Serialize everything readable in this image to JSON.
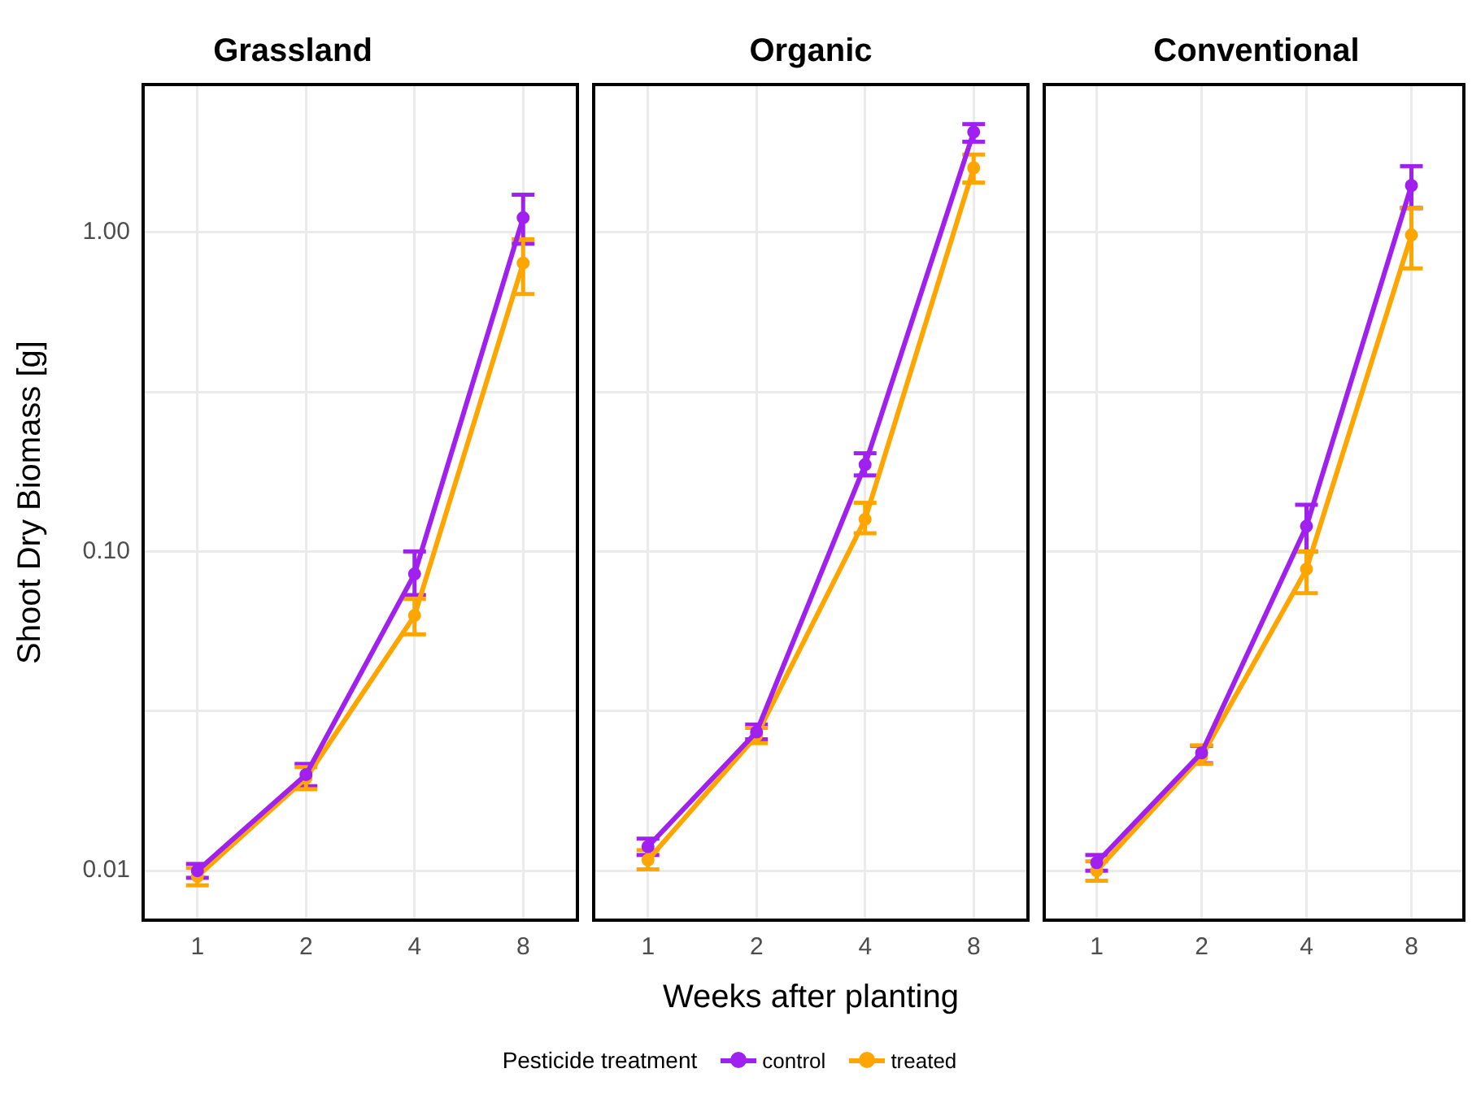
{
  "chart_data": [
    {
      "type": "line",
      "title": "Grassland",
      "ylabel": "Shoot Dry Biomass [g]",
      "categories": [
        "1",
        "2",
        "4",
        "8"
      ],
      "log": "y",
      "ylim": [
        0.007,
        2.9
      ],
      "yticks": [
        {
          "value": 0.01,
          "label": "0.01"
        },
        {
          "value": 0.0316,
          "label": null
        },
        {
          "value": 0.1,
          "label": "0.10"
        },
        {
          "value": 0.316,
          "label": null
        },
        {
          "value": 1,
          "label": "1.00"
        }
      ],
      "grid": true,
      "marker": "circle",
      "legend": "bottom",
      "legend_title": "Pesticide treatment",
      "series": [
        {
          "name": "control",
          "color": "#a020f0",
          "values": [
            0.01,
            0.02,
            0.085,
            1.11
          ],
          "errors": [
            [
              0.0095,
              0.0105
            ],
            [
              0.0184,
              0.0216
            ],
            [
              0.073,
              0.1
            ],
            [
              0.92,
              1.31
            ]
          ]
        },
        {
          "name": "treated",
          "color": "#ffa500",
          "values": [
            0.0096,
            0.0195,
            0.063,
            0.8
          ],
          "errors": [
            [
              0.009,
              0.0102
            ],
            [
              0.018,
              0.0211
            ],
            [
              0.055,
              0.071
            ],
            [
              0.64,
              0.95
            ]
          ]
        }
      ]
    },
    {
      "type": "line",
      "title": "Organic",
      "xlabel": "Weeks after planting",
      "categories": [
        "1",
        "2",
        "4",
        "8"
      ],
      "log": "y",
      "ylim": [
        0.007,
        2.9
      ],
      "yticks": [
        0.01,
        0.0316,
        0.1,
        0.316,
        1
      ],
      "grid": true,
      "marker": "circle",
      "tick_labels": "x",
      "series": [
        {
          "color": "#a020f0",
          "values": [
            0.0119,
            0.0272,
            0.187,
            2.06
          ],
          "errors": [
            [
              0.0112,
              0.0126
            ],
            [
              0.0258,
              0.0287
            ],
            [
              0.173,
              0.203
            ],
            [
              1.92,
              2.18
            ]
          ]
        },
        {
          "color": "#ffa500",
          "values": [
            0.0108,
            0.0265,
            0.126,
            1.59
          ],
          "errors": [
            [
              0.0101,
              0.0116
            ],
            [
              0.0251,
              0.028
            ],
            [
              0.114,
              0.142
            ],
            [
              1.43,
              1.75
            ]
          ]
        }
      ]
    },
    {
      "type": "line",
      "title": "Conventional",
      "categories": [
        "1",
        "2",
        "4",
        "8"
      ],
      "log": "y",
      "ylim": [
        0.007,
        2.9
      ],
      "yticks": [
        0.01,
        0.0316,
        0.1,
        0.316,
        1
      ],
      "grid": true,
      "marker": "circle",
      "tick_labels": "x",
      "series": [
        {
          "color": "#a020f0",
          "values": [
            0.0106,
            0.0234,
            0.12,
            1.4
          ],
          "errors": [
            [
              0.01,
              0.0112
            ],
            [
              0.0217,
              0.0246
            ],
            [
              0.1,
              0.14
            ],
            [
              1.19,
              1.61
            ]
          ]
        },
        {
          "color": "#ffa500",
          "values": [
            0.01,
            0.0228,
            0.088,
            0.98
          ],
          "errors": [
            [
              0.0093,
              0.0107
            ],
            [
              0.0216,
              0.0247
            ],
            [
              0.074,
              0.1
            ],
            [
              0.77,
              1.19
            ]
          ]
        }
      ]
    }
  ]
}
